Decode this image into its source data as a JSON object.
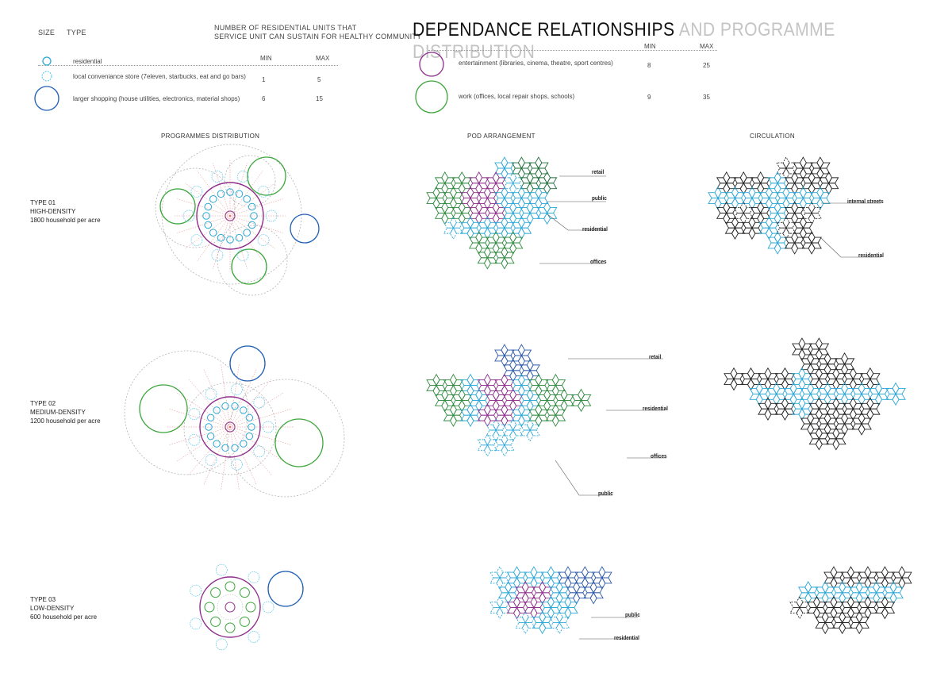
{
  "title": {
    "main": "DEPENDANCE RELATIONSHIPS",
    "sub": "AND PROGRAMME DISTRIBUTION"
  },
  "legend": {
    "size_header": "SIZE",
    "type_header": "TYPE",
    "units_header_line1": "NUMBER OF RESIDENTIAL UNITS THAT",
    "units_header_line2": "SERVICE UNIT CAN SUSTAIN FOR HEALTHY COMMUNITY",
    "min_header": "MIN",
    "max_header": "MAX",
    "items": [
      {
        "label": "residential",
        "min": "",
        "max": ""
      },
      {
        "label": "local conveniance store (7eleven, starbucks, eat and go bars)",
        "min": "1",
        "max": "5"
      },
      {
        "label": "larger shopping (house utilities, electronics, material shops)",
        "min": "6",
        "max": "15"
      },
      {
        "label": "entertainment (libraries, cinema, theatre, sport centres)",
        "min": "8",
        "max": "25"
      },
      {
        "label": "work (offices, local repair shops, schools)",
        "min": "9",
        "max": "35"
      }
    ],
    "colors": {
      "residential": "#29a9d6",
      "store": "#4fc3e8",
      "shopping": "#1f5fb4",
      "entertainment": "#8e2d8c",
      "work": "#3aa63a"
    }
  },
  "sections": {
    "distribution": "PROGRAMMES DISTRIBUTION",
    "pod": "POD ARRANGEMENT",
    "circulation": "CIRCULATION"
  },
  "types": [
    {
      "name": "TYPE 01",
      "density": "HIGH-DENSITY",
      "households": "1800 household per acre"
    },
    {
      "name": "TYPE 02",
      "density": "MEDIUM-DENSITY",
      "households": "1200 household per acre"
    },
    {
      "name": "TYPE 03",
      "density": "LOW-DENSITY",
      "households": "600 household per acre"
    }
  ],
  "callouts": {
    "pod1": [
      "retail",
      "public",
      "residential",
      "offices"
    ],
    "pod2": [
      "retail",
      "residential",
      "offices",
      "public"
    ],
    "pod3": [
      "public",
      "residential"
    ],
    "circ1": [
      "internal streets",
      "residential"
    ]
  },
  "pod_colors": {
    "retail": "#1e6e3a",
    "retail_blue": "#2a58a8",
    "public": "#8e2d8c",
    "residential": "#2aa7d8",
    "offices": "#2e8a3e",
    "black": "#222222"
  }
}
